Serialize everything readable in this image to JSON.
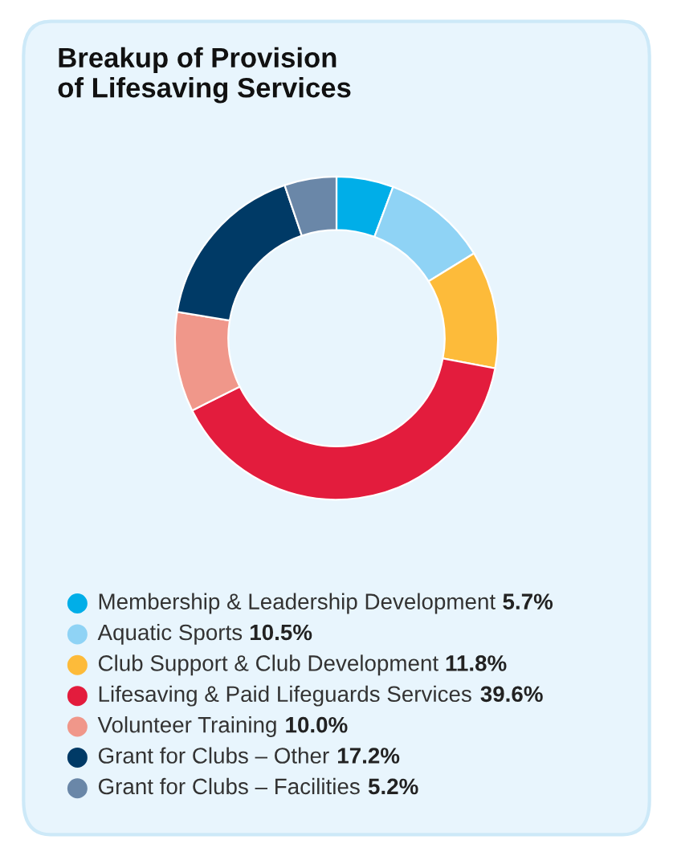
{
  "chart_data": {
    "type": "donut",
    "title": "Breakup of Provision\nof Lifesaving Services",
    "categories": [
      "Membership & Leadership Development",
      "Aquatic Sports",
      "Club Support & Club Development",
      "Lifesaving & Paid Lifeguards Services",
      "Volunteer Training",
      "Grant for Clubs – Other",
      "Grant for Clubs – Facilities"
    ],
    "values": [
      5.7,
      10.5,
      11.8,
      39.6,
      10.0,
      17.2,
      5.2
    ],
    "value_labels": [
      "5.7%",
      "10.5%",
      "11.8%",
      "39.6%",
      "10.0%",
      "17.2%",
      "5.2%"
    ],
    "colors": [
      "#00aee8",
      "#8fd3f5",
      "#fdbb3a",
      "#e31c3d",
      "#f0978a",
      "#003a66",
      "#6a87a8"
    ],
    "legend": "bottom"
  }
}
